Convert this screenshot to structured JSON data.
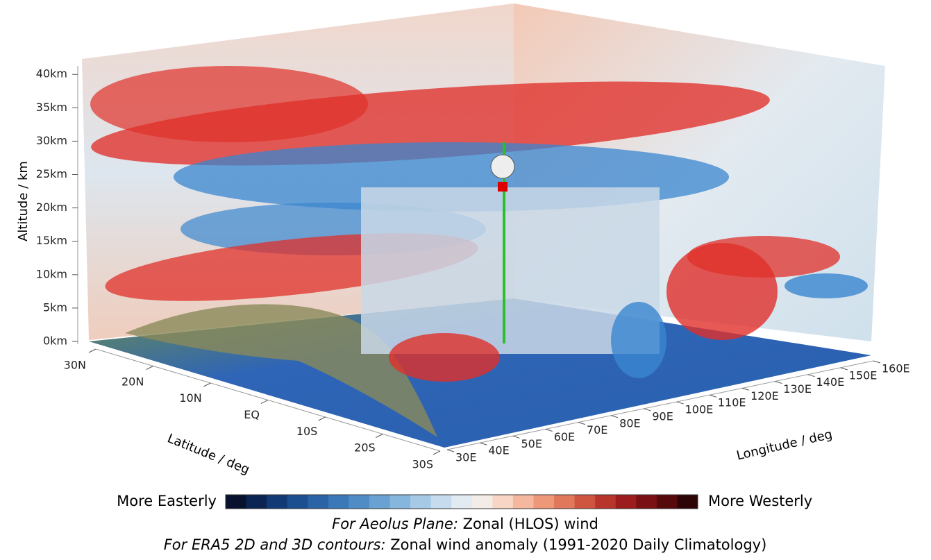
{
  "chart_data": {
    "type": "isosurface3d",
    "zlabel": "Altitude / km",
    "ylabel": "Latitude / deg",
    "xlabel": "Longitude / deg",
    "zlim": [
      0,
      42
    ],
    "zticks": [
      {
        "value": 0,
        "label": "0km"
      },
      {
        "value": 5,
        "label": "5km"
      },
      {
        "value": 10,
        "label": "10km"
      },
      {
        "value": 15,
        "label": "15km"
      },
      {
        "value": 20,
        "label": "20km"
      },
      {
        "value": 25,
        "label": "25km"
      },
      {
        "value": 30,
        "label": "30km"
      },
      {
        "value": 35,
        "label": "35km"
      },
      {
        "value": 40,
        "label": "40km"
      }
    ],
    "ylim": [
      30,
      -30
    ],
    "yticks": [
      {
        "value": 30,
        "label": "30N"
      },
      {
        "value": 20,
        "label": "20N"
      },
      {
        "value": 10,
        "label": "10N"
      },
      {
        "value": 0,
        "label": "EQ"
      },
      {
        "value": -10,
        "label": "10S"
      },
      {
        "value": -20,
        "label": "20S"
      },
      {
        "value": -30,
        "label": "30S"
      }
    ],
    "xlim": [
      30,
      160
    ],
    "xticks": [
      {
        "value": 30,
        "label": "30E"
      },
      {
        "value": 40,
        "label": "40E"
      },
      {
        "value": 50,
        "label": "50E"
      },
      {
        "value": 60,
        "label": "60E"
      },
      {
        "value": 70,
        "label": "70E"
      },
      {
        "value": 80,
        "label": "80E"
      },
      {
        "value": 90,
        "label": "90E"
      },
      {
        "value": 100,
        "label": "100E"
      },
      {
        "value": 110,
        "label": "110E"
      },
      {
        "value": 120,
        "label": "120E"
      },
      {
        "value": 130,
        "label": "130E"
      },
      {
        "value": 140,
        "label": "140E"
      },
      {
        "value": 150,
        "label": "150E"
      },
      {
        "value": 160,
        "label": "160E"
      }
    ],
    "colorbar": {
      "left_label": "More Easterly",
      "right_label": "More Westerly",
      "colors": [
        "#08122e",
        "#0b2552",
        "#123a75",
        "#1c4f8f",
        "#2a63a6",
        "#3b78b8",
        "#4f8cc6",
        "#68a1d2",
        "#86b6dd",
        "#a6cae6",
        "#c6dcee",
        "#e2ebf2",
        "#f4ece6",
        "#f8d5c4",
        "#f5b79e",
        "#ee987a",
        "#e1775b",
        "#cf5540",
        "#b8352b",
        "#9b1d1e",
        "#7a1014",
        "#560a0c",
        "#2e0506"
      ]
    },
    "caption": [
      {
        "label": "For Aeolus Plane:",
        "text": "Zonal (HLOS) wind"
      },
      {
        "label": "For ERA5 2D and 3D contours:",
        "text": "Zonal wind anomaly (1991-2020 Daily Climatology)"
      }
    ]
  }
}
